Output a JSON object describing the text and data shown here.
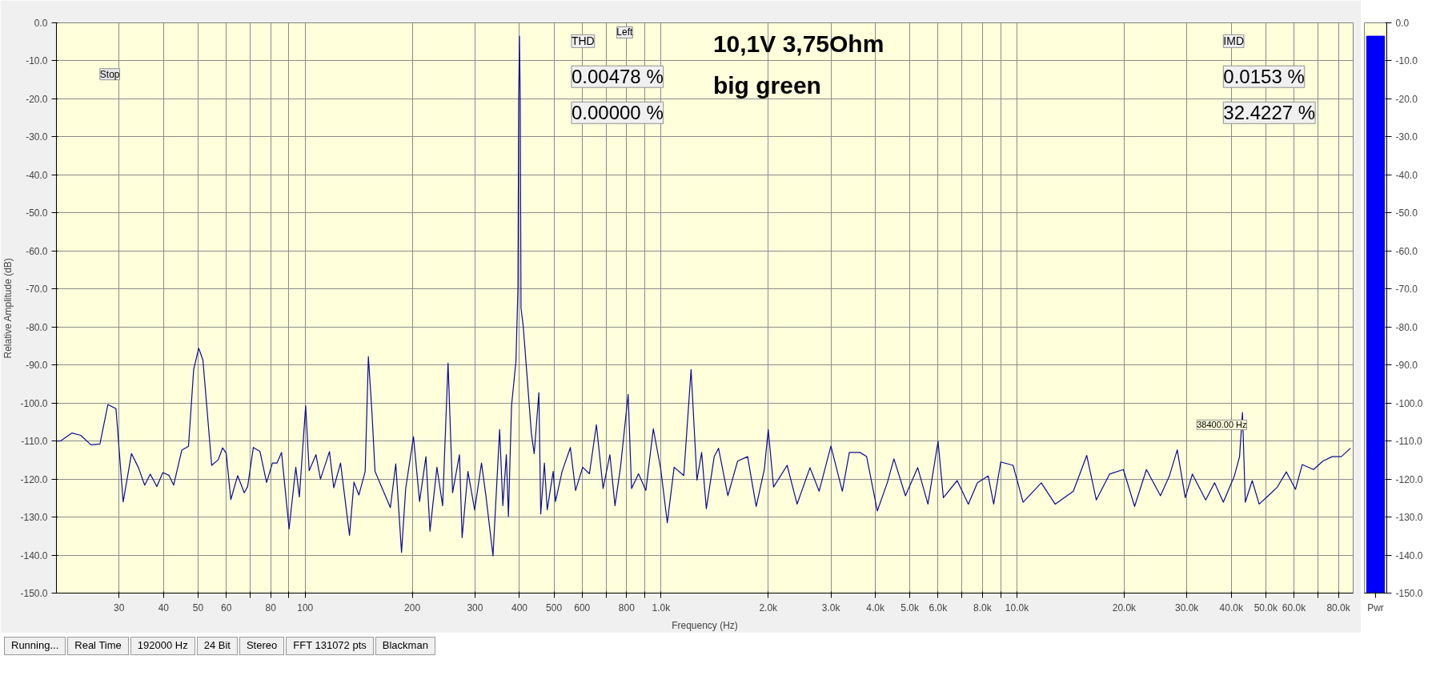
{
  "chart_data": [
    {
      "type": "line",
      "title": "10,1V 3,75Ohm",
      "subtitle": "big green",
      "xlabel": "Frequency (Hz)",
      "ylabel": "Relative Amplitude (dB)",
      "log": "x",
      "grid": true,
      "line_style": "solid",
      "marker": "none",
      "xlim": [
        20,
        88000
      ],
      "ylim": [
        -150,
        0
      ],
      "xticks": [
        {
          "value": 30,
          "label": "30"
        },
        {
          "value": 40,
          "label": "40"
        },
        {
          "value": 50,
          "label": "50"
        },
        {
          "value": 60,
          "label": "60"
        },
        {
          "value": 70,
          "label": null
        },
        {
          "value": 80,
          "label": "80"
        },
        {
          "value": 90,
          "label": null
        },
        {
          "value": 100,
          "label": "100"
        },
        {
          "value": 200,
          "label": "200"
        },
        {
          "value": 300,
          "label": "300"
        },
        {
          "value": 400,
          "label": "400"
        },
        {
          "value": 500,
          "label": "500"
        },
        {
          "value": 600,
          "label": "600"
        },
        {
          "value": 700,
          "label": null
        },
        {
          "value": 800,
          "label": "800"
        },
        {
          "value": 900,
          "label": null
        },
        {
          "value": 1000,
          "label": "1.0k"
        },
        {
          "value": 2000,
          "label": "2.0k"
        },
        {
          "value": 3000,
          "label": "3.0k"
        },
        {
          "value": 4000,
          "label": "4.0k"
        },
        {
          "value": 5000,
          "label": "5.0k"
        },
        {
          "value": 6000,
          "label": "6.0k"
        },
        {
          "value": 7000,
          "label": null
        },
        {
          "value": 8000,
          "label": "8.0k"
        },
        {
          "value": 9000,
          "label": null
        },
        {
          "value": 10000,
          "label": "10.0k"
        },
        {
          "value": 20000,
          "label": "20.0k"
        },
        {
          "value": 30000,
          "label": "30.0k"
        },
        {
          "value": 40000,
          "label": "40.0k"
        },
        {
          "value": 50000,
          "label": "50.0k"
        },
        {
          "value": 60000,
          "label": "60.0k"
        },
        {
          "value": 70000,
          "label": null
        },
        {
          "value": 80000,
          "label": "80.0k"
        }
      ],
      "yticks": [
        {
          "value": 0,
          "label": "0.0"
        },
        {
          "value": -10,
          "label": "-10.0"
        },
        {
          "value": -20,
          "label": "-20.0"
        },
        {
          "value": -30,
          "label": "-30.0"
        },
        {
          "value": -40,
          "label": "-40.0"
        },
        {
          "value": -50,
          "label": "-50.0"
        },
        {
          "value": -60,
          "label": "-60.0"
        },
        {
          "value": -70,
          "label": "-70.0"
        },
        {
          "value": -80,
          "label": "-80.0"
        },
        {
          "value": -90,
          "label": "-90.0"
        },
        {
          "value": -100,
          "label": "-100.0"
        },
        {
          "value": -110,
          "label": "-110.0"
        },
        {
          "value": -120,
          "label": "-120.0"
        },
        {
          "value": -130,
          "label": "-130.0"
        },
        {
          "value": -140,
          "label": "-140.0"
        },
        {
          "value": -150,
          "label": "-150.0"
        }
      ],
      "annotations": [
        "Left",
        "Stop",
        "THD",
        "0.00478 %",
        "0.00000 %",
        "IMD",
        "0.0153 %",
        "32.4227 %",
        "Running...",
        "Real Time",
        "192000 Hz",
        "24 Bit",
        "Stereo",
        "FFT 131072 pts",
        "Blackman",
        "38400.00 Hz"
      ],
      "series": [
        {
          "color": "#0a0a96",
          "x": [
            20,
            20.5,
            22.1,
            23.4,
            25,
            26.5,
            27.9,
            29.4,
            30.8,
            32.5,
            34,
            35.4,
            36.7,
            38.3,
            39.8,
            41.4,
            42.7,
            45,
            47,
            48.6,
            50.2,
            51.6,
            54.6,
            57,
            58.6,
            60,
            61.8,
            64.6,
            67.4,
            68.9,
            71.5,
            74.6,
            77.9,
            80.9,
            83.3,
            85.8,
            90.1,
            94.1,
            96.3,
            100.3,
            102.6,
            107.2,
            110.4,
            117,
            120.3,
            125.7,
            133.2,
            137.1,
            141.5,
            147.4,
            150.5,
            154,
            157.1,
            165.5,
            173.5,
            179.7,
            186.5,
            191.6,
            201.5,
            209.6,
            218.4,
            224.2,
            234.5,
            243.3,
            252,
            259.5,
            271.3,
            276,
            286.6,
            299.3,
            312.9,
            322.2,
            337,
            351.8,
            359.2,
            367.4,
            372.4,
            380,
            391,
            396,
            398,
            400,
            402,
            404,
            410,
            420.5,
            432,
            440,
            453.5,
            459,
            470,
            478.6,
            497.5,
            505,
            527,
            556,
            575,
            602,
            629,
            658,
            687,
            718,
            742,
            769,
            808,
            826,
            864,
            906,
            951,
            998,
            1041,
            1088,
            1158,
            1214,
            1261,
            1300,
            1340,
            1410,
            1450,
            1540,
            1640,
            1750,
            1850,
            1950,
            2000,
            2070,
            2260,
            2410,
            2620,
            2780,
            3000,
            3230,
            3380,
            3620,
            3780,
            4050,
            4320,
            4510,
            4860,
            5260,
            5620,
            6000,
            6210,
            6790,
            7300,
            7740,
            8300,
            8600,
            9000,
            9750,
            10400,
            11700,
            12800,
            14400,
            15700,
            16700,
            18200,
            19900,
            21400,
            23100,
            25300,
            26800,
            28200,
            29700,
            31100,
            33900,
            35900,
            38000,
            40800,
            42200,
            43000,
            43800,
            45800,
            47900,
            50800,
            53900,
            57100,
            60600,
            63300,
            68100,
            72300,
            76800,
            81500,
            86500
          ],
          "values": [
            -110,
            -110,
            -107.9,
            -108.5,
            -111,
            -110.8,
            -100.4,
            -101.5,
            -126,
            -113.3,
            -117,
            -121.6,
            -118.7,
            -122,
            -118.3,
            -119,
            -121.6,
            -112.4,
            -111.4,
            -91.2,
            -85.6,
            -88.7,
            -116.4,
            -114.9,
            -111.8,
            -113.2,
            -125.4,
            -119.1,
            -123.6,
            -122,
            -111.7,
            -112.7,
            -120.9,
            -115.8,
            -115.8,
            -113,
            -133.1,
            -116.9,
            -124.7,
            -100.7,
            -117.8,
            -113.6,
            -120,
            -112.8,
            -122.3,
            -115.8,
            -134.8,
            -120.8,
            -124.2,
            -118,
            -87.8,
            -102.4,
            -118,
            -123,
            -127.5,
            -116,
            -139.3,
            -122.5,
            -108.9,
            -125.9,
            -114.1,
            -133.7,
            -116.9,
            -127,
            -89.5,
            -123.6,
            -113.6,
            -135.4,
            -118,
            -128.1,
            -115.8,
            -124.7,
            -140.2,
            -107,
            -127,
            -113.6,
            -129.8,
            -100.7,
            -89,
            -70,
            -20,
            -3.5,
            -20,
            -75,
            -80,
            -93.4,
            -108,
            -113.3,
            -97.3,
            -129.2,
            -115.8,
            -128.1,
            -118,
            -125.9,
            -118,
            -111.7,
            -123,
            -116.9,
            -118.6,
            -105.7,
            -122.5,
            -113.6,
            -127,
            -116.9,
            -97.7,
            -122.5,
            -118.6,
            -123,
            -106.8,
            -117.5,
            -131.5,
            -116.9,
            -119.1,
            -91.2,
            -120.3,
            -113,
            -127.8,
            -114.1,
            -111.9,
            -124.4,
            -115.3,
            -114.1,
            -127.2,
            -117.5,
            -107,
            -122.1,
            -116.4,
            -126.6,
            -117,
            -123.2,
            -111.3,
            -123.2,
            -113,
            -113,
            -114.1,
            -128.4,
            -121,
            -114.7,
            -124.4,
            -117,
            -126.6,
            -110.1,
            -124.9,
            -120.4,
            -126.6,
            -121,
            -119.2,
            -126.6,
            -115.5,
            -116.4,
            -126.1,
            -121,
            -126.6,
            -123.2,
            -113.8,
            -125.5,
            -118.7,
            -117.5,
            -127.2,
            -117.5,
            -124.4,
            -119.2,
            -112.3,
            -124.9,
            -118.7,
            -125.5,
            -121,
            -126.1,
            -119.2,
            -114.1,
            -102.5,
            -126.1,
            -120.4,
            -126.6,
            -124.4,
            -122.1,
            -118.1,
            -122.7,
            -116.2,
            -117.5,
            -115.3,
            -114.1,
            -114.1,
            -111.9
          ]
        }
      ]
    },
    {
      "type": "bar",
      "categories": [
        "Pwr"
      ],
      "base": [
        -150
      ],
      "values": [
        146.5
      ],
      "color": "#0000ff",
      "ylim": [
        -150,
        0
      ],
      "yticks": [
        {
          "value": 0,
          "label": "0.0"
        },
        {
          "value": -10,
          "label": "-10.0"
        },
        {
          "value": -20,
          "label": "-20.0"
        },
        {
          "value": -30,
          "label": "-30.0"
        },
        {
          "value": -40,
          "label": "-40.0"
        },
        {
          "value": -50,
          "label": "-50.0"
        },
        {
          "value": -60,
          "label": "-60.0"
        },
        {
          "value": -70,
          "label": "-70.0"
        },
        {
          "value": -80,
          "label": "-80.0"
        },
        {
          "value": -90,
          "label": "-90.0"
        },
        {
          "value": -100,
          "label": "-100.0"
        },
        {
          "value": -110,
          "label": "-110.0"
        },
        {
          "value": -120,
          "label": "-120.0"
        },
        {
          "value": -130,
          "label": "-130.0"
        },
        {
          "value": -140,
          "label": "-140.0"
        },
        {
          "value": -150,
          "label": "-150.0"
        }
      ],
      "grid": false
    }
  ]
}
